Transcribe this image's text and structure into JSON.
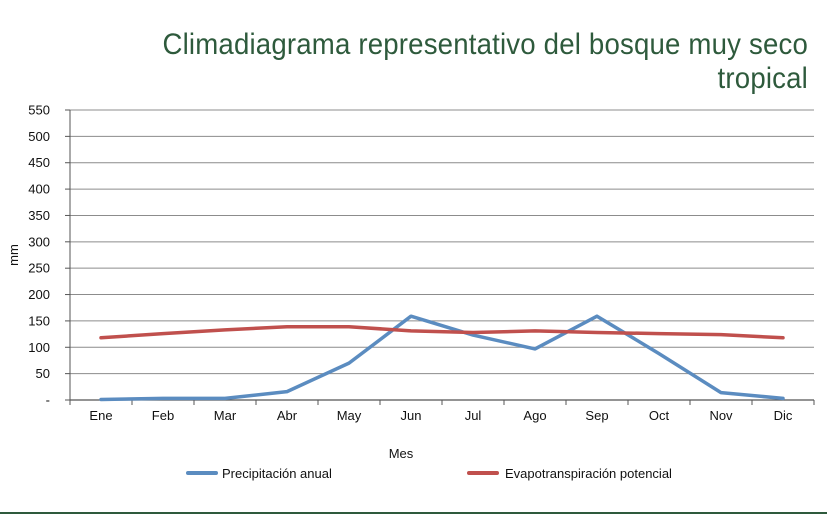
{
  "chart_data": {
    "type": "line",
    "title": "Climadiagrama representativo del bosque muy seco tropical",
    "xlabel": "Mes",
    "ylabel": "mm",
    "categories": [
      "Ene",
      "Feb",
      "Mar",
      "Abr",
      "May",
      "Jun",
      "Jul",
      "Ago",
      "Sep",
      "Oct",
      "Nov",
      "Dic"
    ],
    "y_tick_labels": [
      "-",
      "50",
      "100",
      "150",
      "200",
      "250",
      "300",
      "350",
      "400",
      "450",
      "500",
      "550"
    ],
    "ylim": [
      0,
      550
    ],
    "grid": true,
    "legend_position": "bottom",
    "series": [
      {
        "name": "Precipitación anual",
        "color": "#5b8cc0",
        "values": [
          1,
          3,
          3,
          16,
          70,
          159,
          123,
          97,
          159,
          88,
          14,
          3
        ]
      },
      {
        "name": "Evapotranspiración potencial",
        "color": "#c0504d",
        "values": [
          118,
          126,
          133,
          139,
          139,
          131,
          128,
          131,
          128,
          126,
          124,
          118
        ]
      }
    ]
  }
}
